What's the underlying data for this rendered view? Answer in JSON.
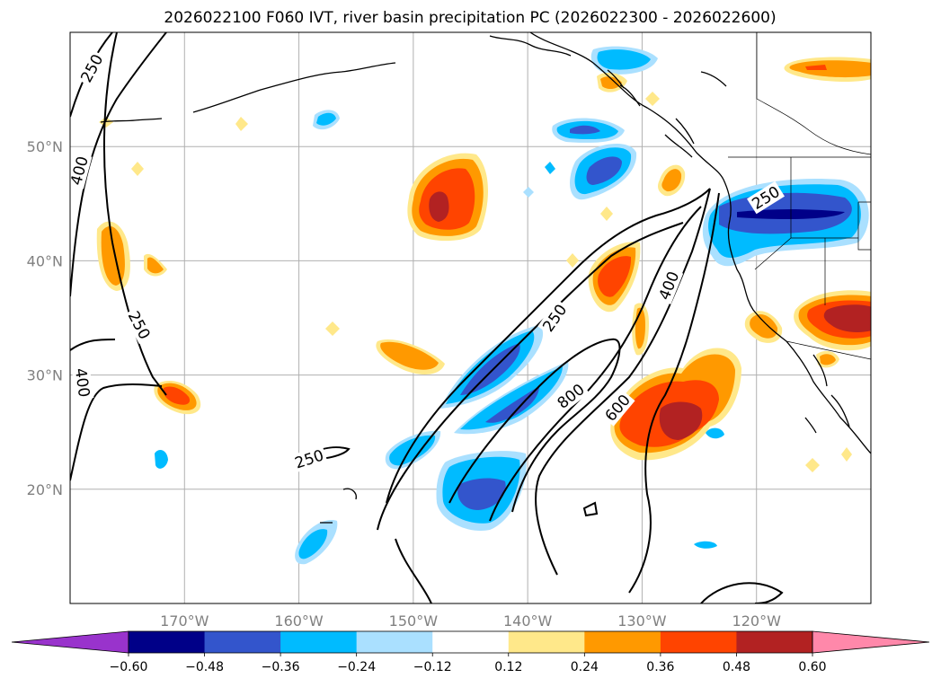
{
  "title": "2026022100 F060 IVT, river basin precipitation PC (2026022300 - 2026022600)",
  "map": {
    "lon_range": [
      -180,
      -110
    ],
    "lat_range": [
      10,
      60
    ],
    "lat_ticks": [
      {
        "value": 50,
        "label": "50°N"
      },
      {
        "value": 40,
        "label": "40°N"
      },
      {
        "value": 30,
        "label": "30°N"
      },
      {
        "value": 20,
        "label": "20°N"
      }
    ],
    "lon_ticks": [
      {
        "value": -170,
        "label": "170°W"
      },
      {
        "value": -160,
        "label": "160°W"
      },
      {
        "value": -150,
        "label": "150°W"
      },
      {
        "value": -140,
        "label": "140°W"
      },
      {
        "value": -130,
        "label": "130°W"
      },
      {
        "value": -120,
        "label": "120°W"
      }
    ],
    "gridlines": true,
    "contour_labels": [
      "250",
      "400",
      "250",
      "400",
      "250",
      "250",
      "400",
      "250",
      "600",
      "800"
    ]
  },
  "colorbar": {
    "extend": "both",
    "colors": [
      "#9933cc",
      "#000088",
      "#3355cc",
      "#00bbff",
      "#aae0ff",
      "#ffffff",
      "#ffe88a",
      "#ff9900",
      "#ff4400",
      "#b22222",
      "#ff88aa"
    ],
    "tick_labels": [
      "−0.60",
      "−0.48",
      "−0.36",
      "−0.24",
      "−0.12",
      "0.12",
      "0.24",
      "0.36",
      "0.48",
      "0.60"
    ]
  }
}
